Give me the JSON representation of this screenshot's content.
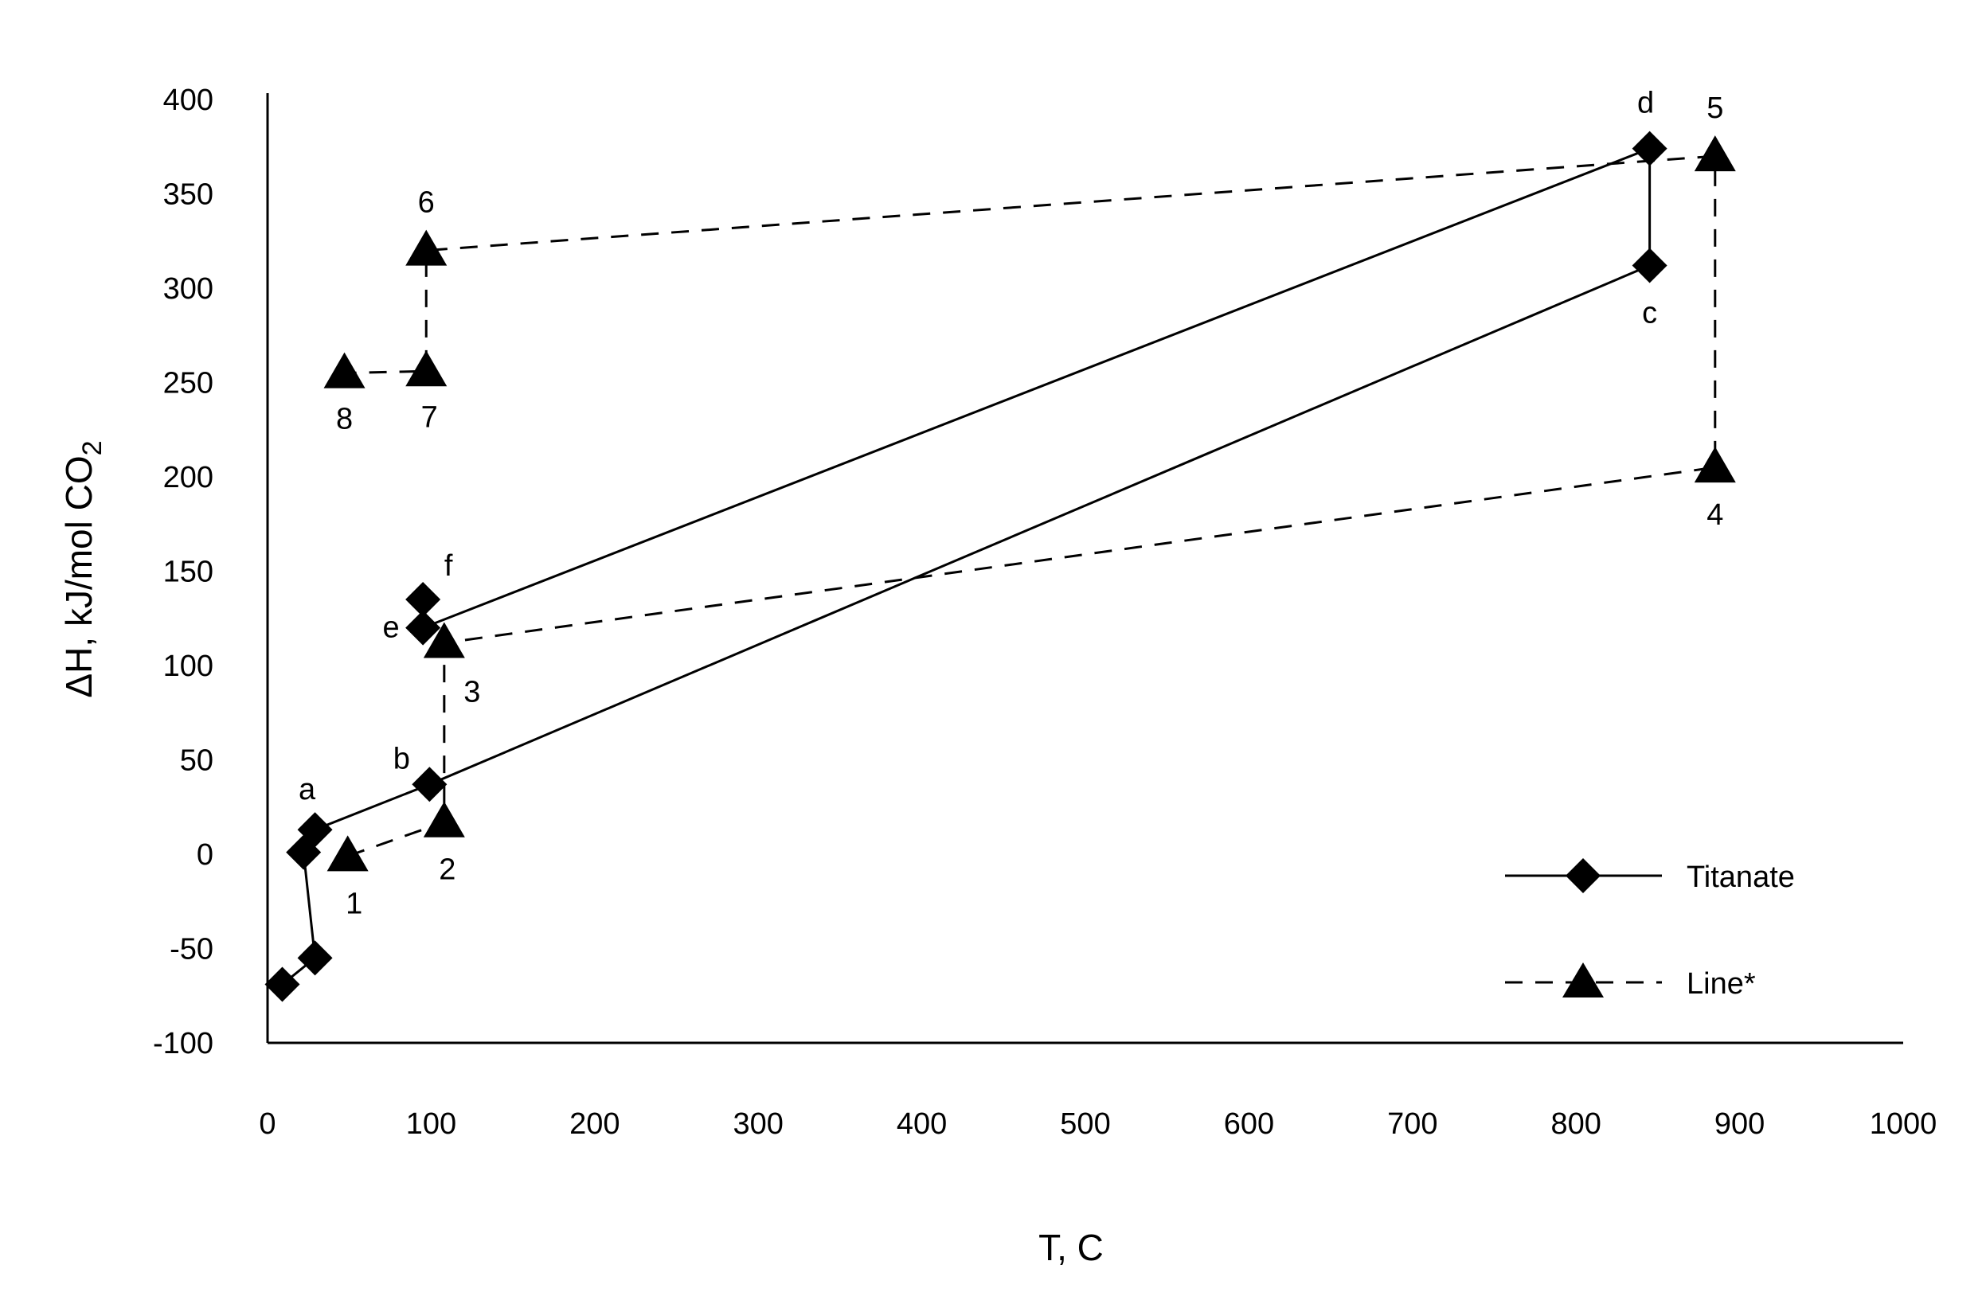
{
  "chart_data": {
    "type": "line",
    "xlabel": "T, C",
    "ylabel_main": "ΔH, kJ/mol CO",
    "ylabel_sub": "2",
    "xlim": [
      0,
      1000
    ],
    "ylim": [
      -100,
      400
    ],
    "x_ticks": [
      0,
      100,
      200,
      300,
      400,
      500,
      600,
      700,
      800,
      900,
      1000
    ],
    "y_ticks": [
      400,
      350,
      300,
      250,
      200,
      150,
      100,
      50,
      0,
      -50,
      -100
    ],
    "grid": false,
    "legend_position": "bottom-right",
    "series": [
      {
        "name": "Titanate",
        "marker": "diamond",
        "line_style": "solid",
        "x": [
          9,
          29,
          22,
          29,
          99,
          845,
          845,
          95,
          95
        ],
        "y": [
          -69,
          -55,
          1,
          13,
          37,
          312,
          374,
          120,
          135
        ],
        "labels": [
          "",
          "",
          "",
          "a",
          "b",
          "c",
          "d",
          "e",
          "f"
        ]
      },
      {
        "name": "Line*",
        "marker": "triangle",
        "line_style": "dashed",
        "x": [
          49,
          108,
          108,
          885,
          885,
          97,
          97,
          47
        ],
        "y": [
          -1,
          17,
          112,
          205,
          370,
          320,
          256,
          255
        ],
        "labels": [
          "1",
          "2",
          "3",
          "4",
          "5",
          "6",
          "7",
          "8"
        ]
      }
    ]
  }
}
